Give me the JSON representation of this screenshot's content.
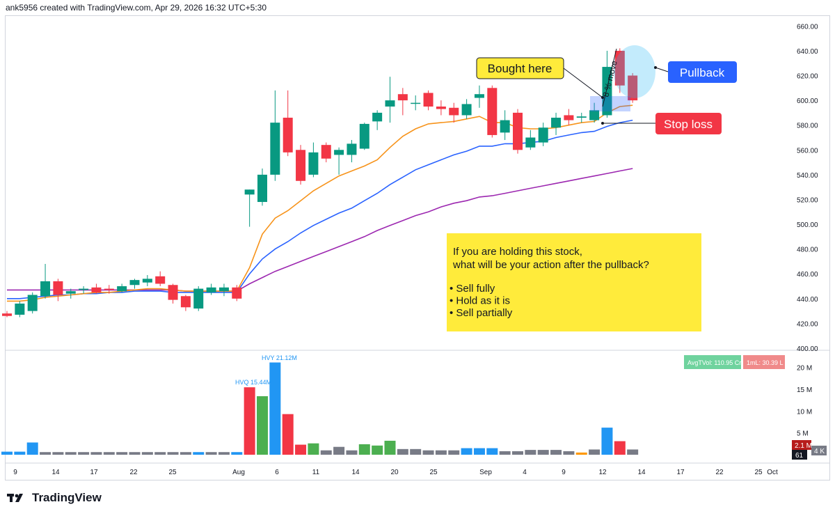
{
  "header": {
    "credit": "ank5956 created with TradingView.com, Apr 29, 2026 16:32 UTC+5:30"
  },
  "brand": {
    "name": "TradingView"
  },
  "annotations": {
    "bought_here": "Bought here",
    "pullback": "Pullback",
    "stop_loss": "Stop loss",
    "move": "8 % move",
    "question_1": "If you are holding this stock,",
    "question_2": "what will be your action after the pullback?",
    "options": [
      "Sell fully",
      "Hold as it is",
      "Sell partially"
    ]
  },
  "badges": {
    "avg_vol": "AvgTVol: 110.95 Cr",
    "one_ml": "1mL: 30.39 L",
    "vol_value": "2.1 M",
    "countdown": "61",
    "partial_k": "4 K"
  },
  "volume_labels": {
    "hvq": "HVQ 15.44M",
    "hvy": "HVY 21.12M"
  },
  "colors": {
    "up": "#089981",
    "down": "#f23645",
    "ema_fast": "#f7931a",
    "ema_mid": "#2962ff",
    "ema_slow": "#9c27b0",
    "note_bg": "#ffeb3b",
    "pullback_bg": "#2962ff",
    "stop_bg": "#f23645"
  },
  "chart_data": {
    "type": "candlestick",
    "x_ticks": [
      "9",
      "14",
      "17",
      "22",
      "25",
      "Aug",
      "6",
      "11",
      "14",
      "20",
      "25",
      "Sep",
      "4",
      "9",
      "12",
      "14",
      "17",
      "22",
      "25",
      "Oct"
    ],
    "y_ticks": [
      "660.00",
      "640.00",
      "620.00",
      "600.00",
      "580.00",
      "560.00",
      "540.00",
      "520.00",
      "500.00",
      "480.00",
      "460.00",
      "440.00",
      "420.00",
      "400.00"
    ],
    "ylim": [
      400,
      663
    ],
    "volume_ticks": [
      "20 M",
      "15 M",
      "10 M",
      "5 M"
    ],
    "volume_max": 22,
    "candles": [
      {
        "o": 428,
        "h": 430,
        "l": 425,
        "c": 426
      },
      {
        "o": 427,
        "h": 438,
        "l": 425,
        "c": 436
      },
      {
        "o": 430,
        "h": 445,
        "l": 428,
        "c": 443
      },
      {
        "o": 442,
        "h": 468,
        "l": 440,
        "c": 454
      },
      {
        "o": 454,
        "h": 456,
        "l": 438,
        "c": 443
      },
      {
        "o": 444,
        "h": 448,
        "l": 440,
        "c": 446
      },
      {
        "o": 447,
        "h": 450,
        "l": 444,
        "c": 448
      },
      {
        "o": 449,
        "h": 452,
        "l": 444,
        "c": 445
      },
      {
        "o": 448,
        "h": 451,
        "l": 444,
        "c": 447
      },
      {
        "o": 446,
        "h": 452,
        "l": 445,
        "c": 450
      },
      {
        "o": 451,
        "h": 456,
        "l": 448,
        "c": 455
      },
      {
        "o": 453,
        "h": 459,
        "l": 450,
        "c": 456
      },
      {
        "o": 458,
        "h": 462,
        "l": 450,
        "c": 452
      },
      {
        "o": 451,
        "h": 452,
        "l": 436,
        "c": 439
      },
      {
        "o": 442,
        "h": 443,
        "l": 430,
        "c": 433
      },
      {
        "o": 432,
        "h": 450,
        "l": 430,
        "c": 448
      },
      {
        "o": 445,
        "h": 452,
        "l": 443,
        "c": 449
      },
      {
        "o": 446,
        "h": 452,
        "l": 442,
        "c": 449
      },
      {
        "o": 449,
        "h": 451,
        "l": 438,
        "c": 440
      },
      {
        "o": 524,
        "h": 528,
        "l": 498,
        "c": 528
      },
      {
        "o": 518,
        "h": 545,
        "l": 515,
        "c": 540
      },
      {
        "o": 540,
        "h": 608,
        "l": 535,
        "c": 582
      },
      {
        "o": 586,
        "h": 608,
        "l": 555,
        "c": 558
      },
      {
        "o": 560,
        "h": 564,
        "l": 532,
        "c": 535
      },
      {
        "o": 540,
        "h": 566,
        "l": 538,
        "c": 558
      },
      {
        "o": 564,
        "h": 566,
        "l": 550,
        "c": 553
      },
      {
        "o": 556,
        "h": 562,
        "l": 540,
        "c": 560
      },
      {
        "o": 556,
        "h": 568,
        "l": 550,
        "c": 565
      },
      {
        "o": 561,
        "h": 582,
        "l": 560,
        "c": 581
      },
      {
        "o": 583,
        "h": 592,
        "l": 576,
        "c": 590
      },
      {
        "o": 595,
        "h": 619,
        "l": 582,
        "c": 600
      },
      {
        "o": 605,
        "h": 610,
        "l": 588,
        "c": 600
      },
      {
        "o": 598,
        "h": 604,
        "l": 592,
        "c": 598
      },
      {
        "o": 606,
        "h": 608,
        "l": 592,
        "c": 595
      },
      {
        "o": 595,
        "h": 600,
        "l": 588,
        "c": 593
      },
      {
        "o": 594,
        "h": 598,
        "l": 582,
        "c": 588
      },
      {
        "o": 588,
        "h": 601,
        "l": 585,
        "c": 597
      },
      {
        "o": 602,
        "h": 612,
        "l": 594,
        "c": 605
      },
      {
        "o": 610,
        "h": 612,
        "l": 570,
        "c": 572
      },
      {
        "o": 574,
        "h": 592,
        "l": 568,
        "c": 584
      },
      {
        "o": 590,
        "h": 593,
        "l": 557,
        "c": 560
      },
      {
        "o": 562,
        "h": 576,
        "l": 560,
        "c": 570
      },
      {
        "o": 566,
        "h": 582,
        "l": 563,
        "c": 578
      },
      {
        "o": 578,
        "h": 590,
        "l": 572,
        "c": 586
      },
      {
        "o": 588,
        "h": 593,
        "l": 580,
        "c": 584
      },
      {
        "o": 586,
        "h": 590,
        "l": 582,
        "c": 587
      },
      {
        "o": 584,
        "h": 598,
        "l": 582,
        "c": 592
      },
      {
        "o": 588,
        "h": 640,
        "l": 586,
        "c": 627
      },
      {
        "o": 640,
        "h": 642,
        "l": 606,
        "c": 612
      },
      {
        "o": 620,
        "h": 622,
        "l": 598,
        "c": 600
      }
    ],
    "volume": [
      0.7,
      0.7,
      2.8,
      0.6,
      0.6,
      0.6,
      0.6,
      0.6,
      0.6,
      0.6,
      0.6,
      0.6,
      0.6,
      0.6,
      0.6,
      0.6,
      0.6,
      0.6,
      0.6,
      15.44,
      13.4,
      21.12,
      9.3,
      2.3,
      2.6,
      1.0,
      1.8,
      1.0,
      2.4,
      2.1,
      3.2,
      1.3,
      1.3,
      1.0,
      1.0,
      1.0,
      1.5,
      1.5,
      1.5,
      0.8,
      0.8,
      1.1,
      1.1,
      1.1,
      0.8,
      0.5,
      1.2,
      6.2,
      3.1,
      1.2
    ],
    "volume_colors": [
      "blue",
      "blue",
      "blue",
      "gray",
      "gray",
      "gray",
      "gray",
      "gray",
      "gray",
      "gray",
      "gray",
      "gray",
      "gray",
      "gray",
      "gray",
      "blue",
      "gray",
      "gray",
      "blue",
      "red",
      "green",
      "blue",
      "red",
      "red",
      "green",
      "gray",
      "gray",
      "gray",
      "green",
      "green",
      "green",
      "gray",
      "gray",
      "gray",
      "gray",
      "gray",
      "blue",
      "blue",
      "blue",
      "gray",
      "gray",
      "gray",
      "gray",
      "gray",
      "gray",
      "orange",
      "gray",
      "blue",
      "red",
      "gray"
    ],
    "ema_fast": [
      438,
      438,
      439,
      441,
      442,
      443,
      444,
      445,
      445,
      446,
      447,
      448,
      448,
      447,
      446,
      446,
      446,
      446,
      446,
      465,
      492,
      505,
      511,
      519,
      527,
      533,
      539,
      543,
      547,
      552,
      562,
      571,
      577,
      581,
      582,
      583,
      585,
      587,
      582,
      582,
      578,
      577,
      577,
      578,
      580,
      582,
      583,
      590,
      595,
      596
    ],
    "ema_mid": [
      440,
      440,
      441,
      442,
      443,
      443,
      444,
      444,
      445,
      445,
      446,
      446,
      446,
      445,
      445,
      445,
      445,
      445,
      445,
      460,
      472,
      480,
      486,
      493,
      499,
      504,
      509,
      513,
      519,
      525,
      532,
      538,
      544,
      548,
      552,
      556,
      559,
      563,
      563,
      565,
      565,
      566,
      567,
      570,
      572,
      574,
      575,
      579,
      582,
      584
    ],
    "ema_slow": [
      447,
      447,
      447,
      447,
      447,
      447,
      447,
      447,
      447,
      447,
      447,
      447,
      447,
      447,
      446,
      446,
      446,
      446,
      446,
      452,
      457,
      462,
      466,
      470,
      474,
      478,
      482,
      486,
      490,
      495,
      499,
      503,
      507,
      510,
      514,
      517,
      519,
      522,
      523,
      525,
      527,
      529,
      531,
      533,
      535,
      537,
      539,
      541,
      543,
      545
    ]
  }
}
